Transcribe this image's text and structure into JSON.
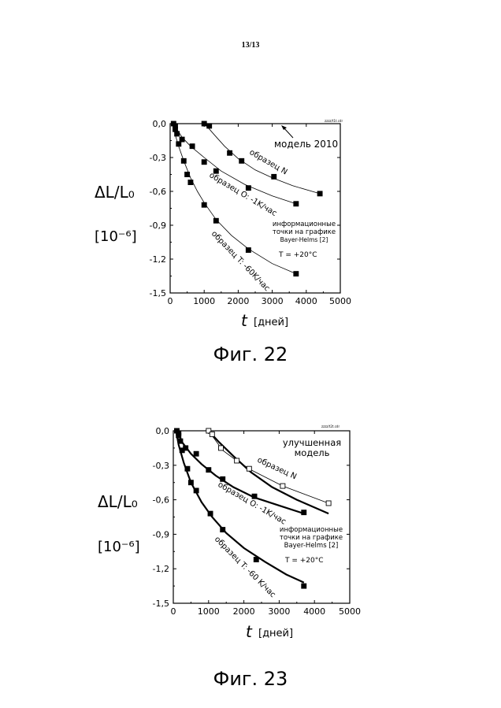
{
  "page_number": "13/13",
  "chart_data": [
    {
      "type": "scatter",
      "caption": "Фиг. 22",
      "tiny_label": "zzzz/t1t.cdr",
      "ylabel_main": "ΔL/L₀",
      "ylabel_unit": "[10⁻⁶]",
      "xlabel_var": "t",
      "xlabel_unit": "[дней]",
      "xlim": [
        0,
        5000
      ],
      "ylim": [
        -1.5,
        0.0
      ],
      "xticks": [
        0,
        1000,
        2000,
        3000,
        4000,
        5000
      ],
      "xtick_labels": [
        "0",
        "1000",
        "2000",
        "3000",
        "4000",
        "5000"
      ],
      "yticks": [
        0.0,
        -0.3,
        -0.6,
        -0.9,
        -1.2,
        -1.5
      ],
      "ytick_labels": [
        "0,0",
        "-0,3",
        "-0,6",
        "-0,9",
        "-1,2",
        "-1,5"
      ],
      "grid": false,
      "series": [
        {
          "name": "образец N",
          "marker": "filled-square",
          "line": "model",
          "line_weight": "thin",
          "x": [
            1000,
            1150,
            1750,
            2100,
            3050,
            4400
          ],
          "y": [
            0.0,
            -0.02,
            -0.26,
            -0.33,
            -0.47,
            -0.62
          ],
          "model_x": [
            1000,
            1100,
            1300,
            1600,
            2000,
            2500,
            3000,
            3600,
            4400
          ],
          "model_y": [
            0.0,
            -0.03,
            -0.1,
            -0.2,
            -0.31,
            -0.41,
            -0.48,
            -0.55,
            -0.62
          ]
        },
        {
          "name": "образец O: -1K/час",
          "marker": "filled-square",
          "line": "model",
          "line_weight": "thin",
          "x": [
            150,
            200,
            350,
            650,
            1000,
            1350,
            2300,
            3700
          ],
          "y": [
            -0.02,
            -0.09,
            -0.14,
            -0.2,
            -0.34,
            -0.42,
            -0.57,
            -0.71
          ],
          "model_x": [
            120,
            200,
            350,
            600,
            1000,
            1500,
            2200,
            3000,
            3700
          ],
          "model_y": [
            0.0,
            -0.05,
            -0.12,
            -0.2,
            -0.3,
            -0.42,
            -0.54,
            -0.64,
            -0.71
          ]
        },
        {
          "name": "образец T: -60K/час",
          "marker": "filled-square",
          "line": "model",
          "line_weight": "thin",
          "x": [
            100,
            150,
            250,
            400,
            500,
            600,
            1000,
            1350,
            2300,
            3700
          ],
          "y": [
            0.0,
            -0.05,
            -0.18,
            -0.33,
            -0.45,
            -0.52,
            -0.72,
            -0.86,
            -1.12,
            -1.33
          ],
          "model_x": [
            80,
            150,
            250,
            400,
            600,
            800,
            1000,
            1350,
            1800,
            2300,
            3000,
            3700
          ],
          "model_y": [
            0.0,
            -0.1,
            -0.2,
            -0.33,
            -0.48,
            -0.6,
            -0.7,
            -0.85,
            -0.99,
            -1.11,
            -1.24,
            -1.33
          ]
        }
      ],
      "annotations": {
        "model": "модель 2010",
        "info_line1": "информационные",
        "info_line2": "точки на графике",
        "info_line3": "Bayer-Helms [2]",
        "temperature": "T = +20°C"
      }
    },
    {
      "type": "scatter",
      "caption": "Фиг. 23",
      "tiny_label": "zzzz/t2t.cdr",
      "ylabel_main": "ΔL/L₀",
      "ylabel_unit": "[10⁻⁶]",
      "xlabel_var": "t",
      "xlabel_unit": "[дней]",
      "xlim": [
        0,
        5000
      ],
      "ylim": [
        -1.5,
        0.0
      ],
      "xticks": [
        0,
        1000,
        2000,
        3000,
        4000,
        5000
      ],
      "xtick_labels": [
        "0",
        "1000",
        "2000",
        "3000",
        "4000",
        "5000"
      ],
      "yticks": [
        0.0,
        -0.3,
        -0.6,
        -0.9,
        -1.2,
        -1.5
      ],
      "ytick_labels": [
        "0,0",
        "-0,3",
        "-0,6",
        "-0,9",
        "-1,2",
        "-1,5"
      ],
      "grid": false,
      "series": [
        {
          "name": "образец N",
          "marker": "open-square",
          "line": "improved model",
          "line_weight": "thick",
          "x": [
            1000,
            1100,
            1350,
            1800,
            2150,
            3100,
            4400
          ],
          "y": [
            0.0,
            -0.03,
            -0.15,
            -0.26,
            -0.33,
            -0.48,
            -0.63
          ],
          "model_x": [
            1000,
            1300,
            1700,
            2200,
            2800,
            3500,
            4400
          ],
          "model_y": [
            0.0,
            -0.1,
            -0.22,
            -0.36,
            -0.49,
            -0.6,
            -0.72
          ],
          "thin_x": [
            1000,
            1400,
            1800,
            2200,
            3100,
            4400
          ],
          "thin_y": [
            0.0,
            -0.17,
            -0.26,
            -0.34,
            -0.48,
            -0.63
          ]
        },
        {
          "name": "образец O: -1K/час",
          "marker": "filled-square",
          "line": "improved model",
          "line_weight": "thick",
          "x": [
            150,
            200,
            350,
            650,
            1000,
            1400,
            2300,
            3700
          ],
          "y": [
            -0.02,
            -0.09,
            -0.15,
            -0.2,
            -0.34,
            -0.42,
            -0.57,
            -0.71
          ],
          "model_x": [
            120,
            250,
            500,
            800,
            1200,
            1700,
            2300,
            3000,
            3700
          ],
          "model_y": [
            0.0,
            -0.1,
            -0.2,
            -0.29,
            -0.39,
            -0.49,
            -0.58,
            -0.65,
            -0.72
          ]
        },
        {
          "name": "образец T: -60 K/час",
          "marker": "filled-square",
          "line": "improved model",
          "line_weight": "thick",
          "x": [
            100,
            150,
            250,
            400,
            500,
            650,
            1050,
            1400,
            2350,
            3700
          ],
          "y": [
            0.0,
            -0.04,
            -0.17,
            -0.33,
            -0.45,
            -0.52,
            -0.72,
            -0.86,
            -1.12,
            -1.35
          ],
          "model_x": [
            80,
            150,
            300,
            500,
            800,
            1100,
            1500,
            2000,
            2600,
            3200,
            3700
          ],
          "model_y": [
            0.0,
            -0.12,
            -0.28,
            -0.45,
            -0.62,
            -0.75,
            -0.89,
            -1.02,
            -1.14,
            -1.25,
            -1.32
          ]
        }
      ],
      "annotations": {
        "model": "улучшенная модель",
        "model_line1": "улучшенная",
        "model_line2": "модель",
        "info_line1": "информационные",
        "info_line2": "точки на графике",
        "info_line3": "Bayer-Helms [2]",
        "temperature": "T = +20°C"
      }
    }
  ]
}
